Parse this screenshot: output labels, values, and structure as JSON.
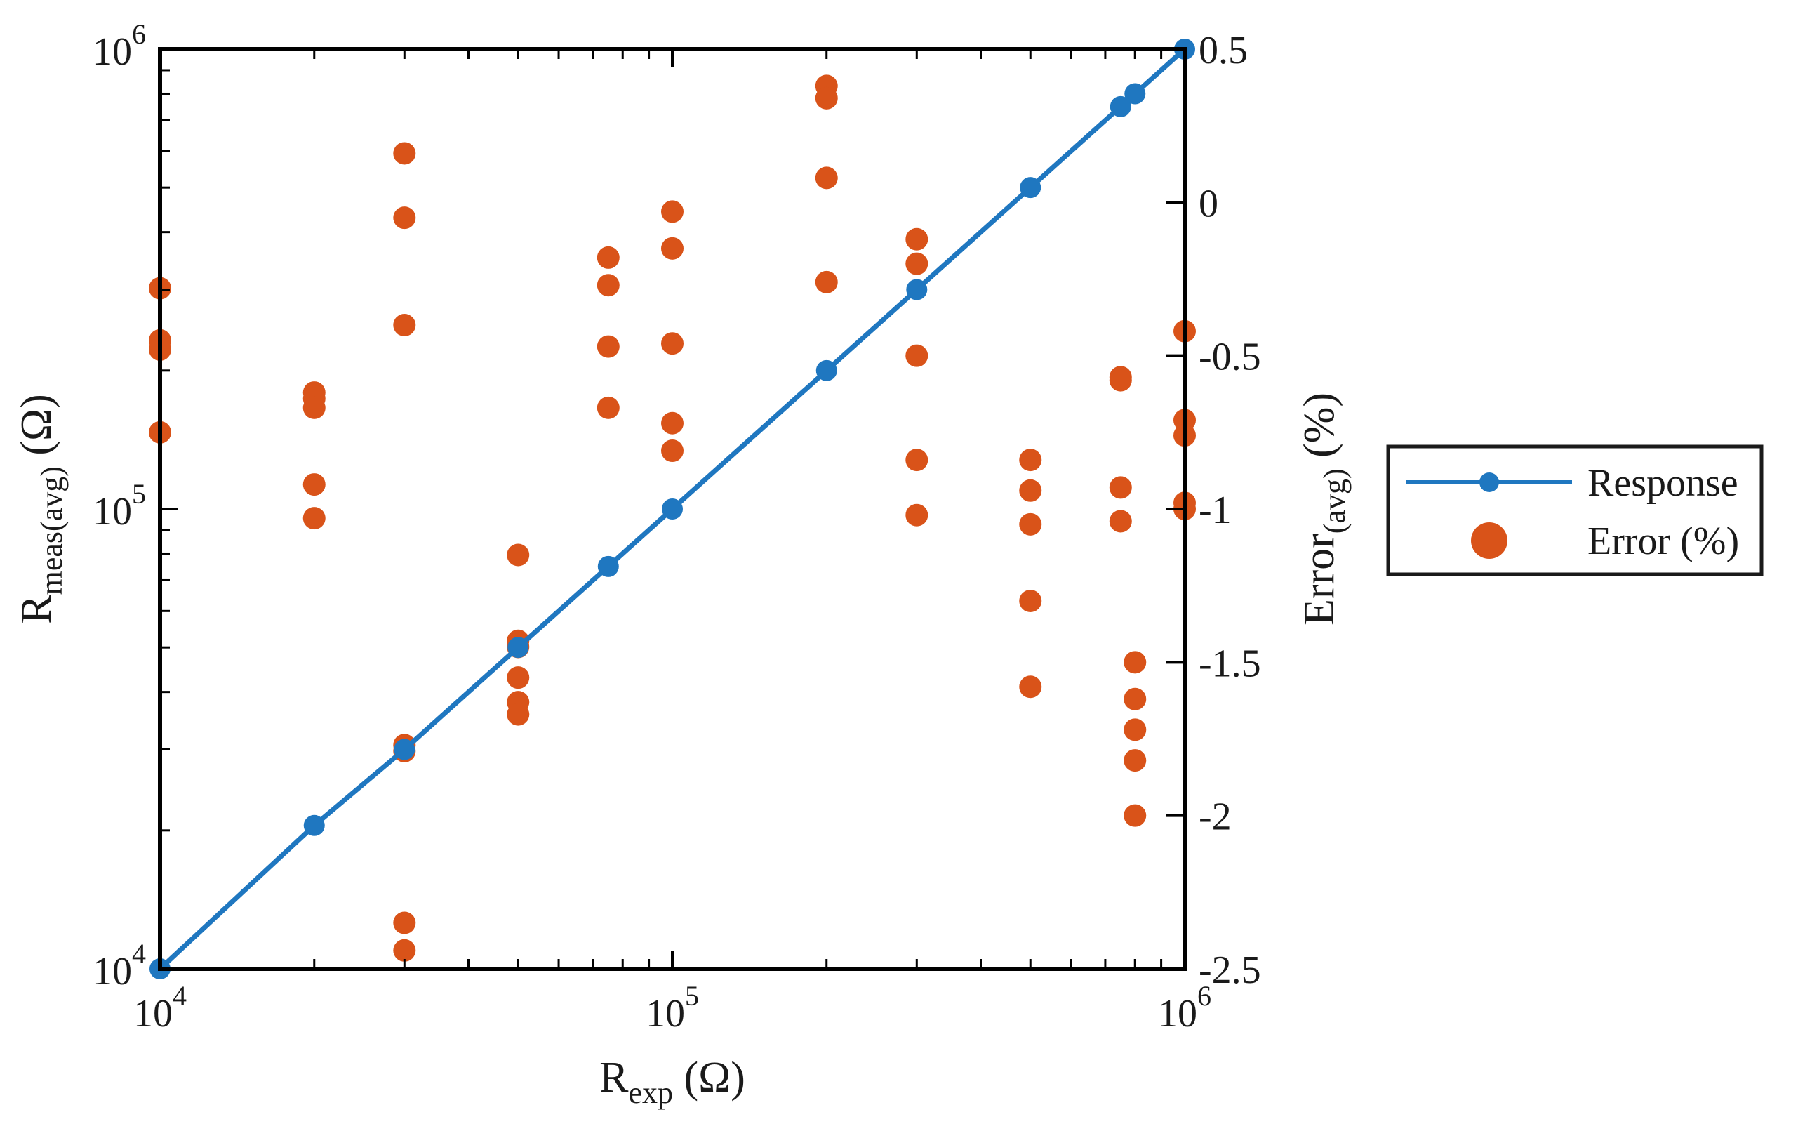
{
  "chart_data": {
    "type": "line+scatter",
    "xlabel": {
      "main": "R",
      "sub": "exp",
      "unit": " (Ω)"
    },
    "ylabel_left": {
      "main": "R",
      "sub": "meas(avg)",
      "unit": " (Ω)"
    },
    "ylabel_right": {
      "main": "Error",
      "sub": "(avg)",
      "unit": " (%)"
    },
    "x_scale": "log",
    "xlim": [
      10000,
      1000000
    ],
    "x_ticks": [
      {
        "value": 10000,
        "base": "10",
        "exp": "4"
      },
      {
        "value": 100000,
        "base": "10",
        "exp": "5"
      },
      {
        "value": 1000000,
        "base": "10",
        "exp": "6"
      }
    ],
    "y_left_scale": "log",
    "y_left_lim": [
      10000,
      1000000
    ],
    "y_left_ticks": [
      {
        "value": 10000,
        "base": "10",
        "exp": "4"
      },
      {
        "value": 100000,
        "base": "10",
        "exp": "5"
      },
      {
        "value": 1000000,
        "base": "10",
        "exp": "6"
      }
    ],
    "y_right_lim": [
      -2.5,
      0.5
    ],
    "y_right_ticks": [
      "-2.5",
      "-2",
      "-1.5",
      "-1",
      "-0.5",
      "0",
      "0.5"
    ],
    "grid": false,
    "legend_position": "outside-right",
    "series": [
      {
        "name": "Response",
        "kind": "line-marker",
        "axis": "left",
        "color": "#1f77c0",
        "x": [
          10000,
          20000,
          30000,
          50000,
          75000,
          100000,
          200000,
          300000,
          500000,
          750000,
          800000,
          1000000
        ],
        "y": [
          10000,
          20500,
          30000,
          50000,
          75000,
          100000,
          200000,
          300000,
          500000,
          750000,
          800000,
          1000000
        ]
      },
      {
        "name": "Error (%)",
        "kind": "scatter",
        "axis": "right",
        "color": "#d95319",
        "points": [
          [
            10000,
            -0.28
          ],
          [
            10000,
            -0.45
          ],
          [
            10000,
            -0.48
          ],
          [
            10000,
            -0.75
          ],
          [
            20000,
            -0.62
          ],
          [
            20000,
            -0.64
          ],
          [
            20000,
            -0.67
          ],
          [
            20000,
            -0.92
          ],
          [
            20000,
            -1.03
          ],
          [
            30000,
            0.16
          ],
          [
            30000,
            -0.05
          ],
          [
            30000,
            -0.4
          ],
          [
            30000,
            -1.77
          ],
          [
            30000,
            -1.79
          ],
          [
            30000,
            -2.35
          ],
          [
            30000,
            -2.44
          ],
          [
            50000,
            -1.15
          ],
          [
            50000,
            -1.43
          ],
          [
            50000,
            -1.45
          ],
          [
            50000,
            -1.55
          ],
          [
            50000,
            -1.63
          ],
          [
            50000,
            -1.67
          ],
          [
            75000,
            -0.18
          ],
          [
            75000,
            -0.27
          ],
          [
            75000,
            -0.47
          ],
          [
            75000,
            -0.67
          ],
          [
            100000,
            -0.03
          ],
          [
            100000,
            -0.15
          ],
          [
            100000,
            -0.46
          ],
          [
            100000,
            -0.72
          ],
          [
            100000,
            -0.81
          ],
          [
            200000,
            0.38
          ],
          [
            200000,
            0.34
          ],
          [
            200000,
            0.08
          ],
          [
            200000,
            -0.26
          ],
          [
            300000,
            -0.12
          ],
          [
            300000,
            -0.2
          ],
          [
            300000,
            -0.5
          ],
          [
            300000,
            -0.84
          ],
          [
            300000,
            -1.02
          ],
          [
            500000,
            -0.84
          ],
          [
            500000,
            -0.94
          ],
          [
            500000,
            -1.05
          ],
          [
            500000,
            -1.3
          ],
          [
            500000,
            -1.58
          ],
          [
            750000,
            -0.57
          ],
          [
            750000,
            -0.58
          ],
          [
            750000,
            -0.93
          ],
          [
            750000,
            -1.04
          ],
          [
            800000,
            -1.5
          ],
          [
            800000,
            -1.62
          ],
          [
            800000,
            -1.72
          ],
          [
            800000,
            -1.82
          ],
          [
            800000,
            -2.0
          ],
          [
            1000000,
            -0.42
          ],
          [
            1000000,
            -0.71
          ],
          [
            1000000,
            -0.76
          ],
          [
            1000000,
            -0.98
          ],
          [
            1000000,
            -1.0
          ]
        ]
      }
    ]
  }
}
